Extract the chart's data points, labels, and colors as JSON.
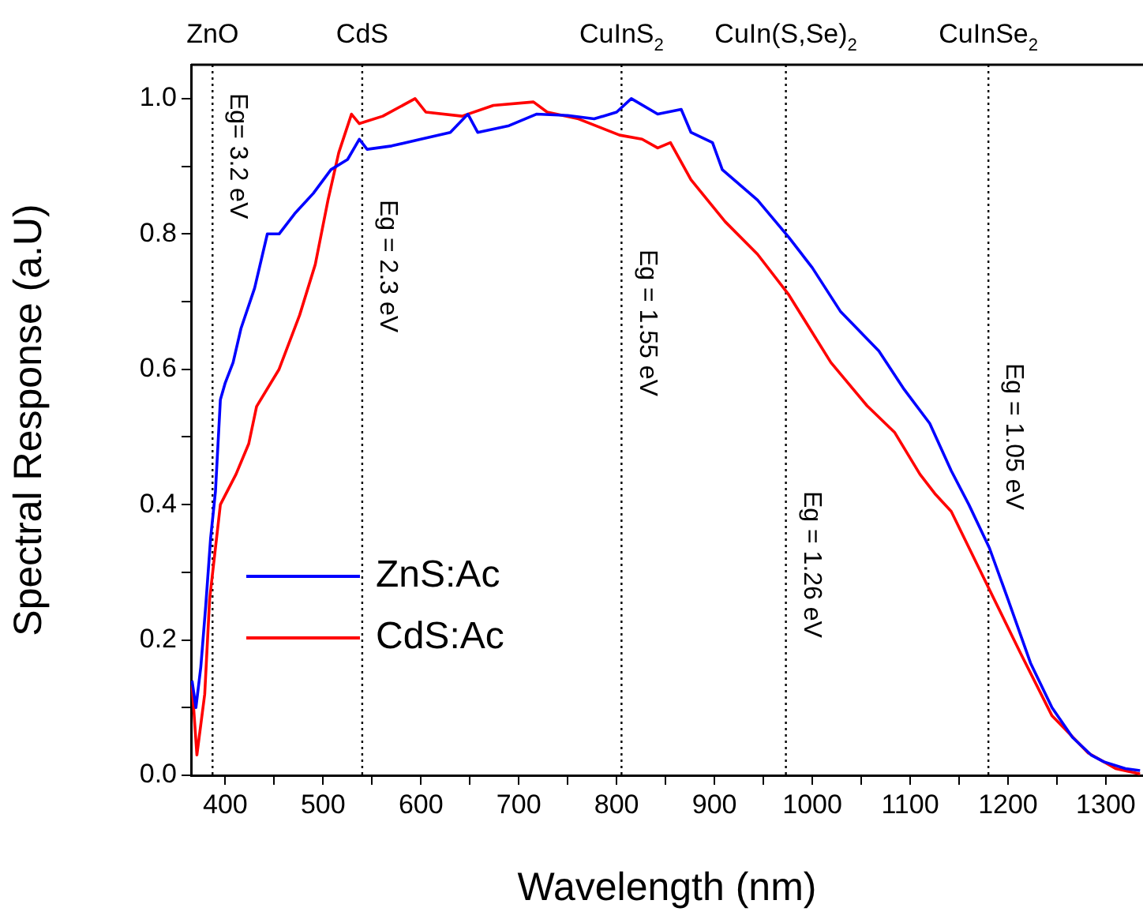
{
  "chart_data": {
    "type": "line",
    "xlabel": "Wavelength (nm)",
    "ylabel": "Spectral Response (a.U)",
    "xlim": [
      365,
      1338
    ],
    "ylim": [
      0,
      1.05
    ],
    "xticks": [
      400,
      {
        "value": 450,
        "label": null
      },
      500,
      {
        "value": 550,
        "label": null
      },
      600,
      {
        "value": 650,
        "label": null
      },
      700,
      {
        "value": 750,
        "label": null
      },
      800,
      {
        "value": 850,
        "label": null
      },
      900,
      {
        "value": 950,
        "label": null
      },
      1000,
      {
        "value": 1050,
        "label": null
      },
      1100,
      {
        "value": 1150,
        "label": null
      },
      1200,
      {
        "value": 1250,
        "label": null
      },
      1300
    ],
    "yticks": [
      {
        "value": 0,
        "label": "0.0"
      },
      {
        "value": 0.1,
        "label": null
      },
      {
        "value": 0.2,
        "label": "0.2"
      },
      {
        "value": 0.3,
        "label": null
      },
      {
        "value": 0.4,
        "label": "0.4"
      },
      {
        "value": 0.5,
        "label": null
      },
      {
        "value": 0.6,
        "label": "0.6"
      },
      {
        "value": 0.7,
        "label": null
      },
      {
        "value": 0.8,
        "label": "0.8"
      },
      {
        "value": 0.9,
        "label": null
      },
      {
        "value": 1,
        "label": "1.0"
      }
    ],
    "grid": false,
    "legend": "left",
    "line_style": "solid",
    "marker": "none",
    "series": [
      {
        "name": "ZnS:Ac",
        "color": "#0000ff",
        "x": [
          366,
          370,
          375,
          380,
          385,
          390,
          395,
          400,
          408,
          416,
          430,
          443,
          455,
          471,
          490,
          508,
          525,
          537,
          545,
          570,
          600,
          630,
          648,
          658,
          690,
          718,
          750,
          777,
          800,
          815,
          842,
          866,
          876,
          898,
          908,
          944,
          976,
          1000,
          1029,
          1068,
          1094,
          1120,
          1142,
          1160,
          1181,
          1200,
          1223,
          1245,
          1266,
          1285,
          1298,
          1320,
          1335
        ],
        "values": [
          0.14,
          0.1,
          0.16,
          0.25,
          0.35,
          0.42,
          0.555,
          0.58,
          0.61,
          0.66,
          0.72,
          0.8,
          0.8,
          0.83,
          0.86,
          0.895,
          0.91,
          0.94,
          0.925,
          0.93,
          0.94,
          0.95,
          0.977,
          0.95,
          0.96,
          0.977,
          0.975,
          0.97,
          0.98,
          1.0,
          0.977,
          0.984,
          0.95,
          0.935,
          0.895,
          0.85,
          0.795,
          0.75,
          0.685,
          0.627,
          0.57,
          0.52,
          0.45,
          0.4,
          0.336,
          0.26,
          0.166,
          0.1,
          0.056,
          0.03,
          0.02,
          0.01,
          0.007
        ]
      },
      {
        "name": "CdS:Ac",
        "color": "#ff0000",
        "x": [
          366,
          371,
          379,
          384,
          395,
          411,
          424,
          432,
          455,
          476,
          492,
          505,
          516,
          529,
          537,
          561,
          594,
          605,
          642,
          674,
          715,
          729,
          761,
          803,
          826,
          842,
          855,
          876,
          911,
          944,
          976,
          1019,
          1056,
          1084,
          1110,
          1126,
          1142,
          1169,
          1213,
          1245,
          1282,
          1310,
          1335
        ],
        "values": [
          0.135,
          0.03,
          0.12,
          0.26,
          0.4,
          0.445,
          0.49,
          0.545,
          0.6,
          0.68,
          0.755,
          0.85,
          0.92,
          0.977,
          0.963,
          0.974,
          1.0,
          0.98,
          0.974,
          0.99,
          0.995,
          0.98,
          0.97,
          0.946,
          0.94,
          0.927,
          0.935,
          0.88,
          0.818,
          0.77,
          0.71,
          0.61,
          0.546,
          0.507,
          0.445,
          0.415,
          0.39,
          0.31,
          0.18,
          0.088,
          0.033,
          0.01,
          0.002
        ]
      }
    ],
    "ref_lines": [
      {
        "axis": "x",
        "value": 387,
        "label": "ZnO",
        "line_style": "dotted",
        "color": "#000000"
      },
      {
        "axis": "x",
        "value": 540,
        "label": "CdS",
        "line_style": "dotted",
        "color": "#000000"
      },
      {
        "axis": "x",
        "value": 805,
        "label": "CuInS$_{2}$",
        "line_style": "dotted",
        "color": "#000000"
      },
      {
        "axis": "x",
        "value": 973,
        "label": "CuIn(S,Se)$_{2}$",
        "line_style": "dotted",
        "color": "#000000"
      },
      {
        "axis": "x",
        "value": 1180,
        "label": "CuInSe$_{2}$",
        "line_style": "dotted",
        "color": "#000000"
      }
    ],
    "annotations": [
      "Eg= 3.2 eV",
      "Eg = 2.3 eV",
      "Eg = 1.55 eV",
      "Eg = 1.26 eV",
      "Eg = 1.05 eV"
    ]
  }
}
